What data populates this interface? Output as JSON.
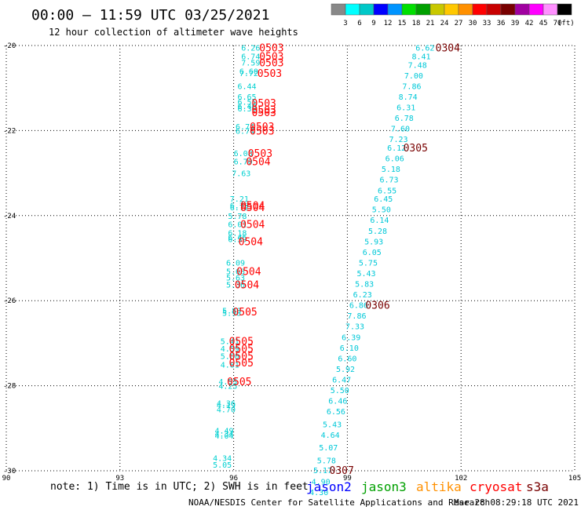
{
  "header": {
    "title": "00:00 – 11:59 UTC 03/25/2021",
    "subtitle": "12 hour collection of altimeter wave heights"
  },
  "legend": {
    "unit": "(ft)",
    "colors": [
      "#888888",
      "#00ffff",
      "#00c8c8",
      "#0000ff",
      "#0094ff",
      "#00e000",
      "#00a000",
      "#c8c800",
      "#ffc800",
      "#ff9000",
      "#ff0000",
      "#c80000",
      "#780000",
      "#a000a0",
      "#ff00ff",
      "#ff90ff",
      "#000000"
    ],
    "labels": [
      "3",
      "6",
      "9",
      "12",
      "15",
      "18",
      "21",
      "24",
      "27",
      "30",
      "33",
      "36",
      "39",
      "42",
      "45",
      "70"
    ]
  },
  "note": "note:  1) Time is in UTC; 2) SWH is in feet",
  "satellites": [
    {
      "name": "jason2",
      "color": "#0000ff"
    },
    {
      "name": "jason3",
      "color": "#00a000"
    },
    {
      "name": "altika",
      "color": "#ff9000"
    },
    {
      "name": "cryosat",
      "color": "#ff0000"
    },
    {
      "name": "s3a",
      "color": "#780000"
    }
  ],
  "footer": {
    "left": "NOAA/NESDIS Center for Satellite Applications and Research",
    "right": "Mar 28 08:29:18 UTC 2021"
  },
  "chart_data": {
    "type": "scatter",
    "title": "12 hour collection of altimeter wave heights",
    "xlim": [
      90,
      105
    ],
    "ylim": [
      -30,
      -20
    ],
    "xticks": [
      90,
      93,
      96,
      99,
      102,
      105
    ],
    "yticks": [
      -20,
      -22,
      -24,
      -26,
      -28,
      -30
    ],
    "grid": true,
    "series": [
      {
        "name": "cryosat",
        "color": "#00d0d0",
        "points": [
          {
            "x": 96.45,
            "y": -20.05,
            "v": "6.26"
          },
          {
            "x": 96.45,
            "y": -20.25,
            "v": "6.74"
          },
          {
            "x": 96.45,
            "y": -20.4,
            "v": "7.59"
          },
          {
            "x": 96.4,
            "y": -20.6,
            "v": "6.60"
          },
          {
            "x": 96.4,
            "y": -20.65,
            "v": "7.72"
          },
          {
            "x": 96.35,
            "y": -20.95,
            "v": "6.44"
          },
          {
            "x": 96.35,
            "y": -21.2,
            "v": "6.65"
          },
          {
            "x": 96.35,
            "y": -21.32,
            "v": "6.55"
          },
          {
            "x": 96.35,
            "y": -21.42,
            "v": "6.40"
          },
          {
            "x": 96.35,
            "y": -21.48,
            "v": "6.30"
          },
          {
            "x": 96.3,
            "y": -21.9,
            "v": "6.74"
          },
          {
            "x": 96.3,
            "y": -22.0,
            "v": "6.74"
          },
          {
            "x": 96.25,
            "y": -22.53,
            "v": "6.08"
          },
          {
            "x": 96.25,
            "y": -22.72,
            "v": "6.70"
          },
          {
            "x": 96.2,
            "y": -23.0,
            "v": "7.63"
          },
          {
            "x": 96.15,
            "y": -23.6,
            "v": "7.21"
          },
          {
            "x": 96.15,
            "y": -23.75,
            "v": "6.79"
          },
          {
            "x": 96.15,
            "y": -23.8,
            "v": "6.72"
          },
          {
            "x": 96.1,
            "y": -24.0,
            "v": "5.78"
          },
          {
            "x": 96.1,
            "y": -24.2,
            "v": "6.01"
          },
          {
            "x": 96.1,
            "y": -24.4,
            "v": "6.18"
          },
          {
            "x": 96.1,
            "y": -24.5,
            "v": "6.46"
          },
          {
            "x": 96.1,
            "y": -24.55,
            "v": "6.59"
          },
          {
            "x": 96.05,
            "y": -25.1,
            "v": "6.09"
          },
          {
            "x": 96.05,
            "y": -25.3,
            "v": "5.68"
          },
          {
            "x": 96.05,
            "y": -25.45,
            "v": "5.63"
          },
          {
            "x": 96.05,
            "y": -25.62,
            "v": "5.36"
          },
          {
            "x": 95.95,
            "y": -26.23,
            "v": "5.88"
          },
          {
            "x": 95.95,
            "y": -26.28,
            "v": "5.98"
          },
          {
            "x": 95.9,
            "y": -26.95,
            "v": "5.41"
          },
          {
            "x": 95.9,
            "y": -27.12,
            "v": "4.59"
          },
          {
            "x": 95.9,
            "y": -27.3,
            "v": "5.00"
          },
          {
            "x": 95.9,
            "y": -27.5,
            "v": "4.81"
          },
          {
            "x": 95.85,
            "y": -27.9,
            "v": "4.55"
          },
          {
            "x": 95.85,
            "y": -28.0,
            "v": "4.25"
          },
          {
            "x": 95.8,
            "y": -28.4,
            "v": "4.36"
          },
          {
            "x": 95.8,
            "y": -28.45,
            "v": "4.19"
          },
          {
            "x": 95.8,
            "y": -28.55,
            "v": "4.70"
          },
          {
            "x": 95.75,
            "y": -29.05,
            "v": "4.49"
          },
          {
            "x": 95.75,
            "y": -29.12,
            "v": "4.34"
          },
          {
            "x": 95.75,
            "y": -29.17,
            "v": "4.04"
          },
          {
            "x": 95.7,
            "y": -29.7,
            "v": "4.34"
          },
          {
            "x": 95.7,
            "y": -29.85,
            "v": "5.05"
          }
        ]
      },
      {
        "name": "s3a",
        "color": "#00c8d8",
        "points": [
          {
            "x": 101.05,
            "y": -20.05,
            "v": "6.62"
          },
          {
            "x": 100.95,
            "y": -20.25,
            "v": "8.41"
          },
          {
            "x": 100.85,
            "y": -20.45,
            "v": "7.48"
          },
          {
            "x": 100.75,
            "y": -20.7,
            "v": "7.00"
          },
          {
            "x": 100.7,
            "y": -20.95,
            "v": "7.86"
          },
          {
            "x": 100.6,
            "y": -21.2,
            "v": "8.74"
          },
          {
            "x": 100.55,
            "y": -21.45,
            "v": "6.31"
          },
          {
            "x": 100.5,
            "y": -21.7,
            "v": "6.78"
          },
          {
            "x": 100.4,
            "y": -21.95,
            "v": "7.60"
          },
          {
            "x": 100.35,
            "y": -22.2,
            "v": "7.23"
          },
          {
            "x": 100.3,
            "y": -22.4,
            "v": "6.12"
          },
          {
            "x": 100.25,
            "y": -22.65,
            "v": "6.06"
          },
          {
            "x": 100.15,
            "y": -22.9,
            "v": "5.18"
          },
          {
            "x": 100.1,
            "y": -23.15,
            "v": "6.73"
          },
          {
            "x": 100.05,
            "y": -23.4,
            "v": "6.55"
          },
          {
            "x": 99.95,
            "y": -23.6,
            "v": "6.45"
          },
          {
            "x": 99.9,
            "y": -23.85,
            "v": "5.50"
          },
          {
            "x": 99.85,
            "y": -24.1,
            "v": "6.14"
          },
          {
            "x": 99.8,
            "y": -24.35,
            "v": "5.28"
          },
          {
            "x": 99.7,
            "y": -24.6,
            "v": "5.93"
          },
          {
            "x": 99.65,
            "y": -24.85,
            "v": "6.05"
          },
          {
            "x": 99.55,
            "y": -25.1,
            "v": "5.75"
          },
          {
            "x": 99.5,
            "y": -25.35,
            "v": "5.43"
          },
          {
            "x": 99.45,
            "y": -25.6,
            "v": "5.83"
          },
          {
            "x": 99.4,
            "y": -25.85,
            "v": "6.23"
          },
          {
            "x": 99.3,
            "y": -26.1,
            "v": "6.86"
          },
          {
            "x": 99.25,
            "y": -26.35,
            "v": "7.86"
          },
          {
            "x": 99.2,
            "y": -26.6,
            "v": "7.33"
          },
          {
            "x": 99.1,
            "y": -26.85,
            "v": "6.39"
          },
          {
            "x": 99.05,
            "y": -27.1,
            "v": "6.10"
          },
          {
            "x": 99.0,
            "y": -27.35,
            "v": "6.60"
          },
          {
            "x": 98.95,
            "y": -27.6,
            "v": "5.92"
          },
          {
            "x": 98.85,
            "y": -27.85,
            "v": "6.47"
          },
          {
            "x": 98.8,
            "y": -28.1,
            "v": "5.50"
          },
          {
            "x": 98.75,
            "y": -28.35,
            "v": "6.46"
          },
          {
            "x": 98.7,
            "y": -28.6,
            "v": "6.56"
          },
          {
            "x": 98.6,
            "y": -28.9,
            "v": "5.43"
          },
          {
            "x": 98.55,
            "y": -29.15,
            "v": "4.64"
          },
          {
            "x": 98.5,
            "y": -29.45,
            "v": "5.07"
          },
          {
            "x": 98.45,
            "y": -29.75,
            "v": "5.78"
          },
          {
            "x": 98.35,
            "y": -29.98,
            "v": "5.17"
          },
          {
            "x": 98.3,
            "y": -30.25,
            "v": "4.90"
          },
          {
            "x": 98.25,
            "y": -30.5,
            "v": "4.30"
          }
        ]
      }
    ],
    "pass_labels": [
      {
        "x": 97.0,
        "y": -20.05,
        "t": "0503",
        "color": "#ff0000"
      },
      {
        "x": 97.0,
        "y": -20.25,
        "t": "0503",
        "color": "#ff0000"
      },
      {
        "x": 97.0,
        "y": -20.4,
        "t": "0503",
        "color": "#ff0000"
      },
      {
        "x": 96.95,
        "y": -20.65,
        "t": "0503",
        "color": "#ff0000"
      },
      {
        "x": 96.8,
        "y": -21.35,
        "t": "0503",
        "color": "#ff0000"
      },
      {
        "x": 96.8,
        "y": -21.5,
        "t": "0503",
        "color": "#ff0000"
      },
      {
        "x": 96.8,
        "y": -21.57,
        "t": "0503",
        "color": "#ff0000"
      },
      {
        "x": 96.75,
        "y": -21.9,
        "t": "0503",
        "color": "#ff0000"
      },
      {
        "x": 96.75,
        "y": -22.0,
        "t": "0503",
        "color": "#ff0000"
      },
      {
        "x": 96.7,
        "y": -22.53,
        "t": "0503",
        "color": "#ff0000"
      },
      {
        "x": 96.65,
        "y": -22.72,
        "t": "0504",
        "color": "#ff0000"
      },
      {
        "x": 96.5,
        "y": -23.75,
        "t": "0504",
        "color": "#ff0000"
      },
      {
        "x": 96.5,
        "y": -23.8,
        "t": "0504",
        "color": "#ff0000"
      },
      {
        "x": 96.5,
        "y": -24.2,
        "t": "0504",
        "color": "#ff0000"
      },
      {
        "x": 96.45,
        "y": -24.6,
        "t": "0504",
        "color": "#ff0000"
      },
      {
        "x": 96.4,
        "y": -25.3,
        "t": "0504",
        "color": "#ff0000"
      },
      {
        "x": 96.35,
        "y": -25.62,
        "t": "0504",
        "color": "#ff0000"
      },
      {
        "x": 96.3,
        "y": -26.25,
        "t": "0505",
        "color": "#ff0000"
      },
      {
        "x": 96.2,
        "y": -26.95,
        "t": "0505",
        "color": "#ff0000"
      },
      {
        "x": 96.2,
        "y": -27.12,
        "t": "0505",
        "color": "#ff0000"
      },
      {
        "x": 96.2,
        "y": -27.3,
        "t": "0505",
        "color": "#ff0000"
      },
      {
        "x": 96.2,
        "y": -27.45,
        "t": "0505",
        "color": "#ff0000"
      },
      {
        "x": 96.15,
        "y": -27.9,
        "t": "0505",
        "color": "#ff0000"
      },
      {
        "x": 101.65,
        "y": -20.05,
        "t": "0304",
        "color": "#780000"
      },
      {
        "x": 100.8,
        "y": -22.4,
        "t": "0305",
        "color": "#780000"
      },
      {
        "x": 99.8,
        "y": -26.1,
        "t": "0306",
        "color": "#780000"
      },
      {
        "x": 98.85,
        "y": -29.98,
        "t": "0307",
        "color": "#780000"
      }
    ]
  }
}
